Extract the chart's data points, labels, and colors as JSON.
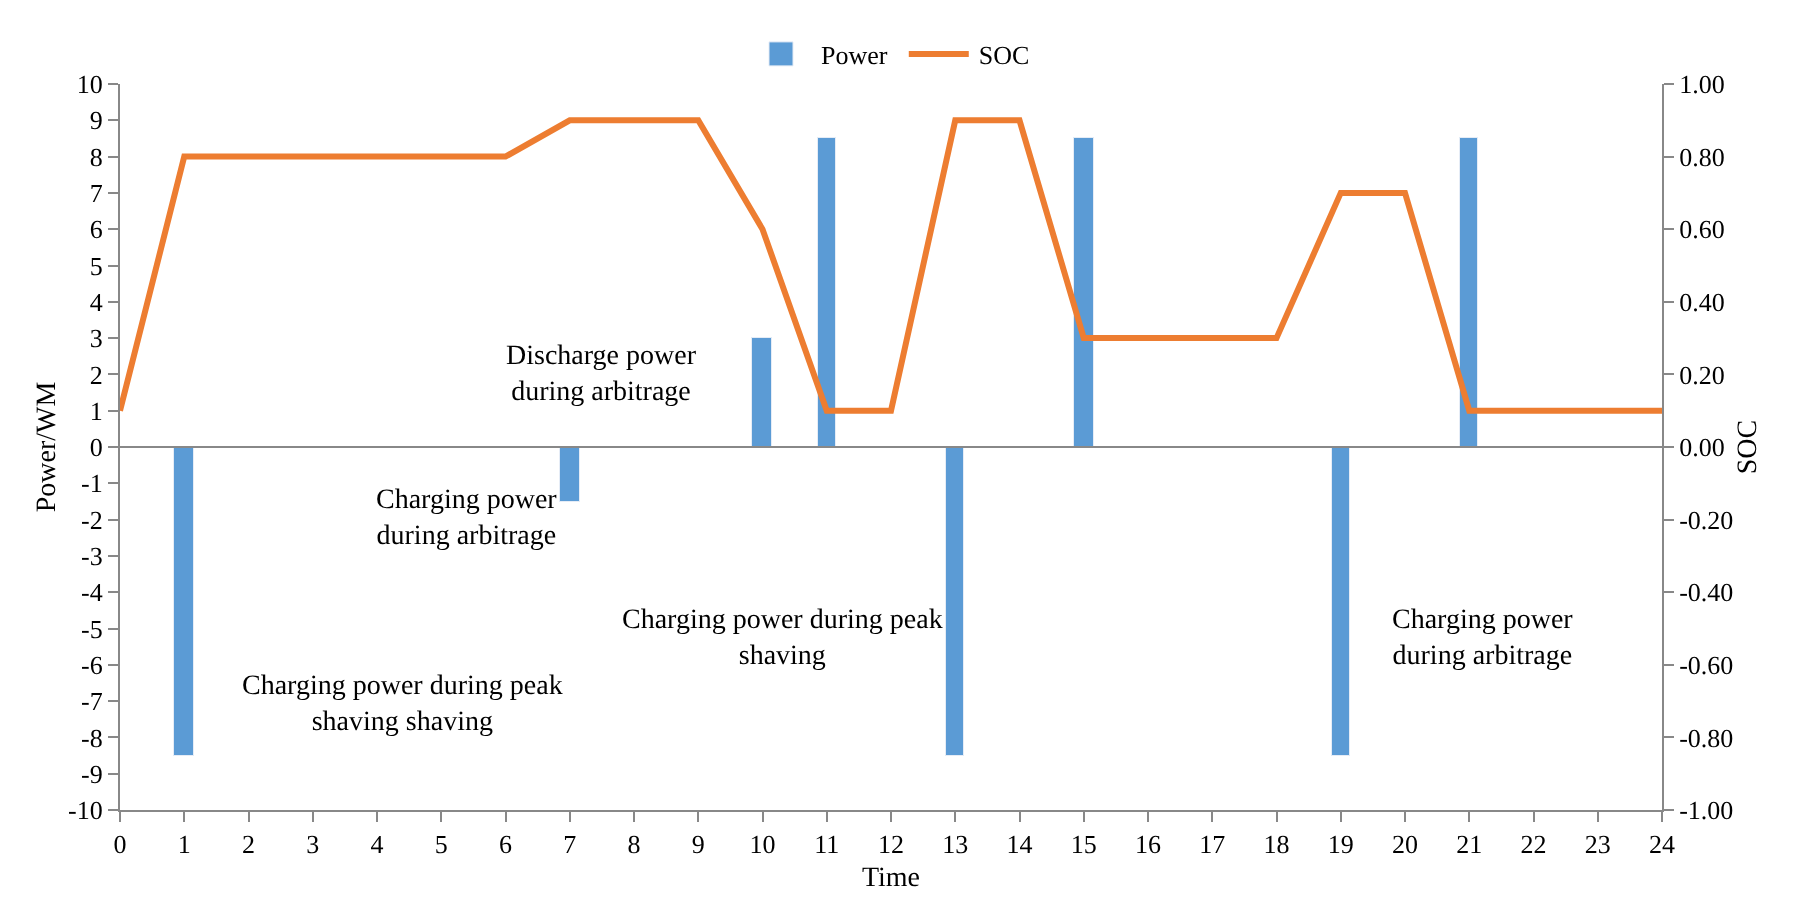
{
  "chart_data": {
    "type": "bar",
    "xlabel": "Time",
    "ylabel": "Power/WM",
    "y2label": "SOC",
    "legend": "top",
    "ref_lines": [
      {
        "axis": "y",
        "value": 0,
        "color": "#888888"
      }
    ],
    "xlim": [
      0,
      24
    ],
    "xticks": [
      0,
      1,
      2,
      3,
      4,
      5,
      6,
      7,
      8,
      9,
      10,
      11,
      12,
      13,
      14,
      15,
      16,
      17,
      18,
      19,
      20,
      21,
      22,
      23,
      24
    ],
    "ylim": [
      -10,
      10
    ],
    "yticks": [
      -10,
      -9,
      -8,
      -7,
      -6,
      -5,
      -4,
      -3,
      -2,
      -1,
      0,
      1,
      2,
      3,
      4,
      5,
      6,
      7,
      8,
      9,
      10
    ],
    "y2lim": [
      -1,
      1
    ],
    "y2ticks": [
      {
        "value": -1,
        "label": "-1.00"
      },
      {
        "value": -0.8,
        "label": "-0.80"
      },
      {
        "value": -0.6,
        "label": "-0.60"
      },
      {
        "value": -0.4,
        "label": "-0.40"
      },
      {
        "value": -0.2,
        "label": "-0.20"
      },
      {
        "value": 0,
        "label": "0.00"
      },
      {
        "value": 0.2,
        "label": "0.20"
      },
      {
        "value": 0.4,
        "label": "0.40"
      },
      {
        "value": 0.6,
        "label": "0.60"
      },
      {
        "value": 0.8,
        "label": "0.80"
      },
      {
        "value": 1,
        "label": "1.00"
      }
    ],
    "series": [
      {
        "name": "Power",
        "color": "#5b9bd5",
        "x": [
          1,
          7,
          10,
          11,
          13,
          15,
          19,
          21
        ],
        "values": [
          -8.5,
          -1.5,
          3,
          8.5,
          -8.5,
          8.5,
          -8.5,
          8.5
        ]
      },
      {
        "name": "SOC",
        "type": "line",
        "axis": "y2",
        "color": "#ed7d31",
        "marker": "none",
        "x": [
          0,
          1,
          2,
          3,
          4,
          5,
          6,
          7,
          8,
          9,
          10,
          11,
          12,
          13,
          14,
          15,
          16,
          17,
          18,
          19,
          20,
          21,
          22,
          23,
          24
        ],
        "values": [
          0.1,
          0.8,
          0.8,
          0.8,
          0.8,
          0.8,
          0.8,
          0.9,
          0.9,
          0.9,
          0.6,
          0.1,
          0.1,
          0.9,
          0.9,
          0.3,
          0.3,
          0.3,
          0.3,
          0.7,
          0.7,
          0.1,
          0.1,
          0.1,
          0.1
        ]
      }
    ],
    "annotations": [
      "Discharge power\nduring arbitrage",
      "Charging power\nduring arbitrage",
      "Charging power during peak\nshaving",
      "Charging power during peak\nshaving shaving",
      "Charging power\nduring arbitrage"
    ]
  }
}
